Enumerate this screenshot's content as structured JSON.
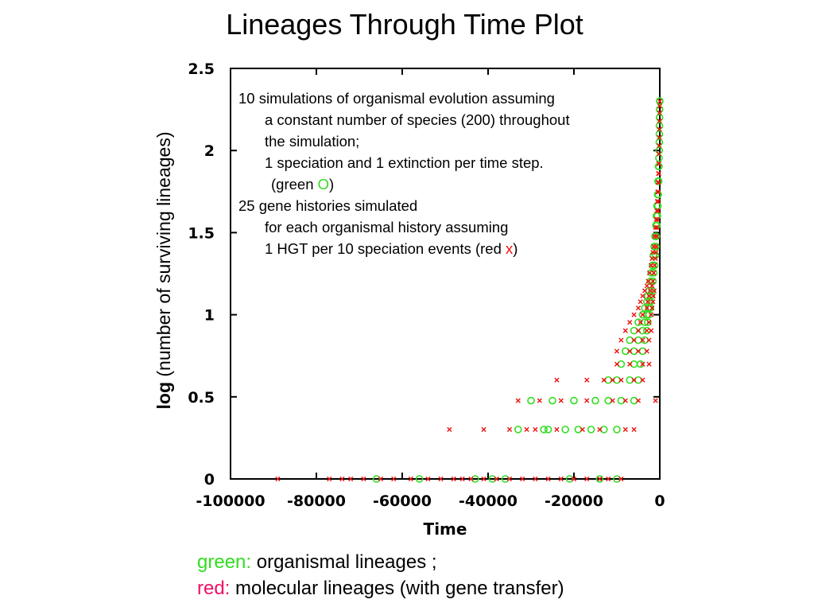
{
  "title": "Lineages Through Time Plot",
  "annotation": {
    "line1": "10 simulations of organismal evolution assuming",
    "line2": "a constant number of species (200) throughout",
    "line3": "the simulation;",
    "line4": "1 speciation and 1 extinction per time step.",
    "line5_pre": "(green",
    "line5_marker": "O",
    "line5_post": ")",
    "line6": "25 gene histories simulated",
    "line7": "for each organismal history assuming",
    "line8_pre": "1 HGT per 10 speciation events (red",
    "line8_marker": "x",
    "line8_post": ")"
  },
  "ylabel": {
    "bold": "log",
    "rest": " (number of surviving lineages)"
  },
  "caption": {
    "green_key": "green:",
    "green_text": "organismal lineages ;",
    "red_key": "red:",
    "red_text": "molecular lineages (with gene transfer)"
  },
  "colors": {
    "organismal": "#33dd22",
    "molecular": "#ee1111"
  },
  "chart_data": {
    "type": "scatter",
    "title": "",
    "xlabel": "Time",
    "ylabel": "log (number of surviving lineages)",
    "xlim": [
      -100000,
      0
    ],
    "ylim": [
      0,
      2.5
    ],
    "x_ticks": [
      -100000,
      -80000,
      -60000,
      -40000,
      -20000,
      0
    ],
    "x_tick_labels": [
      "-100000",
      "-80000",
      "-60000",
      "-40000",
      "-20000",
      "0"
    ],
    "y_ticks": [
      0,
      0.5,
      1,
      1.5,
      2,
      2.5
    ],
    "y_tick_labels": [
      "0",
      "0.5",
      "1",
      "1.5",
      "2",
      "2.5"
    ],
    "grid": false,
    "series": [
      {
        "name": "organismal lineages",
        "marker": "circle",
        "color": "#33dd22",
        "points": [
          [
            -66000,
            0
          ],
          [
            -56000,
            0
          ],
          [
            -43000,
            0
          ],
          [
            -39000,
            0
          ],
          [
            -36000,
            0
          ],
          [
            -21000,
            0
          ],
          [
            -14000,
            0
          ],
          [
            -10000,
            0
          ],
          [
            -33000,
            0.301
          ],
          [
            -27000,
            0.301
          ],
          [
            -26000,
            0.301
          ],
          [
            -22000,
            0.301
          ],
          [
            -19000,
            0.301
          ],
          [
            -16000,
            0.301
          ],
          [
            -13000,
            0.301
          ],
          [
            -10000,
            0.301
          ],
          [
            -30000,
            0.477
          ],
          [
            -25000,
            0.477
          ],
          [
            -20000,
            0.477
          ],
          [
            -15000,
            0.477
          ],
          [
            -12000,
            0.477
          ],
          [
            -9000,
            0.477
          ],
          [
            -6000,
            0.477
          ],
          [
            -12000,
            0.602
          ],
          [
            -10000,
            0.602
          ],
          [
            -7000,
            0.602
          ],
          [
            -5000,
            0.602
          ],
          [
            -9000,
            0.699
          ],
          [
            -6000,
            0.699
          ],
          [
            -4500,
            0.699
          ],
          [
            -8000,
            0.778
          ],
          [
            -6000,
            0.778
          ],
          [
            -4000,
            0.778
          ],
          [
            -7000,
            0.845
          ],
          [
            -5000,
            0.845
          ],
          [
            -3500,
            0.845
          ],
          [
            -6000,
            0.903
          ],
          [
            -4000,
            0.903
          ],
          [
            -3000,
            0.903
          ],
          [
            -5000,
            0.954
          ],
          [
            -3500,
            0.954
          ],
          [
            -2800,
            0.954
          ],
          [
            -4000,
            1.0
          ],
          [
            -3000,
            1.0
          ],
          [
            -2500,
            1.0
          ],
          [
            -3500,
            1.041
          ],
          [
            -2500,
            1.041
          ],
          [
            -2200,
            1.041
          ],
          [
            -3000,
            1.079
          ],
          [
            -2200,
            1.079
          ],
          [
            -2800,
            1.114
          ],
          [
            -2000,
            1.114
          ],
          [
            -2500,
            1.146
          ],
          [
            -1800,
            1.146
          ],
          [
            -2200,
            1.204
          ],
          [
            -1600,
            1.204
          ],
          [
            -2000,
            1.255
          ],
          [
            -1400,
            1.255
          ],
          [
            -1700,
            1.301
          ],
          [
            -1200,
            1.301
          ],
          [
            -1500,
            1.362
          ],
          [
            -1000,
            1.362
          ],
          [
            -1300,
            1.415
          ],
          [
            -900,
            1.415
          ],
          [
            -1100,
            1.477
          ],
          [
            -800,
            1.477
          ],
          [
            -900,
            1.544
          ],
          [
            -650,
            1.544
          ],
          [
            -800,
            1.602
          ],
          [
            -550,
            1.602
          ],
          [
            -650,
            1.663
          ],
          [
            -450,
            1.663
          ],
          [
            -500,
            1.732
          ],
          [
            -350,
            1.732
          ],
          [
            -400,
            1.813
          ],
          [
            -250,
            1.813
          ],
          [
            -300,
            1.903
          ],
          [
            -200,
            1.903
          ],
          [
            -200,
            1.954
          ],
          [
            -150,
            2.0
          ],
          [
            -120,
            2.05
          ],
          [
            -100,
            2.1
          ],
          [
            -80,
            2.15
          ],
          [
            -60,
            2.2
          ],
          [
            -40,
            2.25
          ],
          [
            -20,
            2.301
          ],
          [
            0,
            2.301
          ]
        ]
      },
      {
        "name": "molecular lineages",
        "marker": "x",
        "color": "#ee1111",
        "points": [
          [
            -89000,
            0
          ],
          [
            -77000,
            0
          ],
          [
            -74000,
            0
          ],
          [
            -72000,
            0
          ],
          [
            -69000,
            0
          ],
          [
            -65000,
            0
          ],
          [
            -62000,
            0
          ],
          [
            -58000,
            0
          ],
          [
            -54000,
            0
          ],
          [
            -51000,
            0
          ],
          [
            -48000,
            0
          ],
          [
            -46000,
            0
          ],
          [
            -44000,
            0
          ],
          [
            -41000,
            0
          ],
          [
            -38000,
            0
          ],
          [
            -35000,
            0
          ],
          [
            -32000,
            0
          ],
          [
            -29000,
            0
          ],
          [
            -26000,
            0
          ],
          [
            -23000,
            0
          ],
          [
            -20000,
            0
          ],
          [
            -17000,
            0
          ],
          [
            -14000,
            0
          ],
          [
            -12000,
            0
          ],
          [
            -9000,
            0
          ],
          [
            -49000,
            0.301
          ],
          [
            -41000,
            0.301
          ],
          [
            -35000,
            0.301
          ],
          [
            -31000,
            0.301
          ],
          [
            -29000,
            0.301
          ],
          [
            -24000,
            0.301
          ],
          [
            -18000,
            0.301
          ],
          [
            -14000,
            0.301
          ],
          [
            -8000,
            0.301
          ],
          [
            -6000,
            0.301
          ],
          [
            -33000,
            0.477
          ],
          [
            -28000,
            0.477
          ],
          [
            -23000,
            0.477
          ],
          [
            -17000,
            0.477
          ],
          [
            -11000,
            0.477
          ],
          [
            -8000,
            0.477
          ],
          [
            -5000,
            0.477
          ],
          [
            -1000,
            0.477
          ],
          [
            -24000,
            0.602
          ],
          [
            -17000,
            0.602
          ],
          [
            -13000,
            0.602
          ],
          [
            -11000,
            0.602
          ],
          [
            -9000,
            0.602
          ],
          [
            -6000,
            0.602
          ],
          [
            -4000,
            0.602
          ],
          [
            -10000,
            0.699
          ],
          [
            -7000,
            0.699
          ],
          [
            -4000,
            0.699
          ],
          [
            -2500,
            0.699
          ],
          [
            -10000,
            0.778
          ],
          [
            -7000,
            0.778
          ],
          [
            -5000,
            0.778
          ],
          [
            -3000,
            0.778
          ],
          [
            -9000,
            0.845
          ],
          [
            -6000,
            0.845
          ],
          [
            -4000,
            0.845
          ],
          [
            -2500,
            0.845
          ],
          [
            -8000,
            0.903
          ],
          [
            -5000,
            0.903
          ],
          [
            -3000,
            0.903
          ],
          [
            -2000,
            0.903
          ],
          [
            -7000,
            0.954
          ],
          [
            -4500,
            0.954
          ],
          [
            -2500,
            0.954
          ],
          [
            -6000,
            1.0
          ],
          [
            -4000,
            1.0
          ],
          [
            -2000,
            1.0
          ],
          [
            -5000,
            1.041
          ],
          [
            -3000,
            1.041
          ],
          [
            -1800,
            1.041
          ],
          [
            -4500,
            1.079
          ],
          [
            -2800,
            1.079
          ],
          [
            -1600,
            1.079
          ],
          [
            -4000,
            1.114
          ],
          [
            -2500,
            1.114
          ],
          [
            -1500,
            1.114
          ],
          [
            -3500,
            1.146
          ],
          [
            -2200,
            1.146
          ],
          [
            -1300,
            1.146
          ],
          [
            -3000,
            1.176
          ],
          [
            -1800,
            1.176
          ],
          [
            -2700,
            1.204
          ],
          [
            -1600,
            1.204
          ],
          [
            -2400,
            1.255
          ],
          [
            -1400,
            1.255
          ],
          [
            -2000,
            1.301
          ],
          [
            -1200,
            1.301
          ],
          [
            -1800,
            1.342
          ],
          [
            -1000,
            1.342
          ],
          [
            -1600,
            1.38
          ],
          [
            -900,
            1.38
          ],
          [
            -1400,
            1.415
          ],
          [
            -800,
            1.415
          ],
          [
            -1200,
            1.477
          ],
          [
            -700,
            1.477
          ],
          [
            -1000,
            1.531
          ],
          [
            -600,
            1.531
          ],
          [
            -850,
            1.58
          ],
          [
            -500,
            1.58
          ],
          [
            -700,
            1.633
          ],
          [
            -400,
            1.633
          ],
          [
            -600,
            1.69
          ],
          [
            -350,
            1.69
          ],
          [
            -500,
            1.748
          ],
          [
            -300,
            1.748
          ],
          [
            -400,
            1.806
          ],
          [
            -250,
            1.806
          ],
          [
            -320,
            1.86
          ],
          [
            -200,
            1.86
          ],
          [
            -260,
            1.92
          ],
          [
            -160,
            1.92
          ],
          [
            -200,
            1.98
          ],
          [
            -130,
            2.03
          ],
          [
            -100,
            2.08
          ],
          [
            -80,
            2.13
          ],
          [
            -60,
            2.18
          ],
          [
            -40,
            2.23
          ],
          [
            -20,
            2.27
          ],
          [
            0,
            2.3
          ]
        ]
      }
    ]
  }
}
